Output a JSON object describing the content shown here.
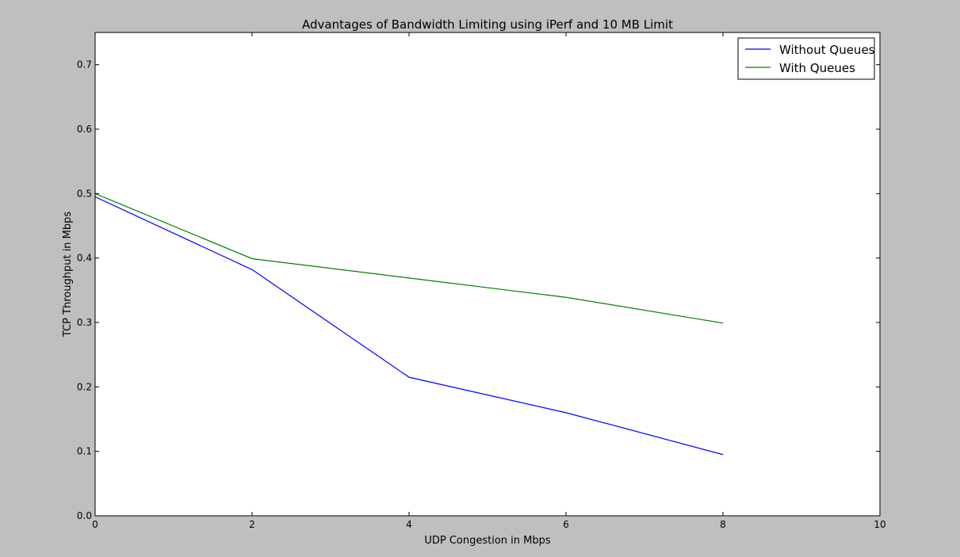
{
  "chart_data": {
    "type": "line",
    "title": "Advantages of Bandwidth Limiting using iPerf and 10 MB Limit",
    "xlabel": "UDP Congestion in Mbps",
    "ylabel": "TCP Throughput in Mbps",
    "xlim": [
      0,
      10
    ],
    "ylim": [
      0,
      0.75
    ],
    "xticks": [
      0,
      2,
      4,
      6,
      8,
      10
    ],
    "xtick_labels": [
      "0",
      "2",
      "4",
      "6",
      "8",
      "10"
    ],
    "yticks": [
      0.0,
      0.1,
      0.2,
      0.3,
      0.4,
      0.5,
      0.6,
      0.7
    ],
    "ytick_labels": [
      "0.0",
      "0.1",
      "0.2",
      "0.3",
      "0.4",
      "0.5",
      "0.6",
      "0.7"
    ],
    "grid": false,
    "legend": "top-right",
    "x": [
      0,
      2,
      4,
      6,
      8
    ],
    "series": [
      {
        "name": "Without Queues",
        "color": "#0000ff",
        "values": [
          0.495,
          0.382,
          0.215,
          0.16,
          0.095
        ]
      },
      {
        "name": "With Queues",
        "color": "#008000",
        "values": [
          0.5,
          0.399,
          0.369,
          0.339,
          0.299
        ]
      }
    ]
  }
}
